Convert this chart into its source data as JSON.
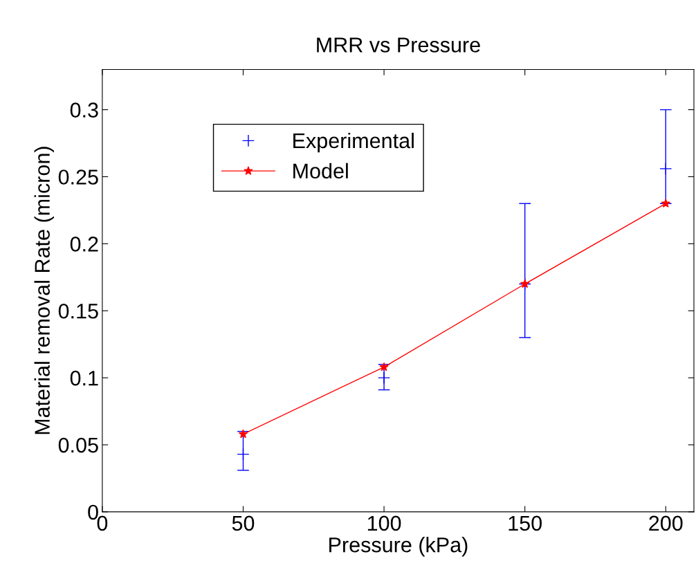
{
  "chart_data": {
    "type": "line",
    "title": "MRR vs Pressure",
    "xlabel": "Pressure (kPa)",
    "ylabel": "Material removal Rate (micron)",
    "x": [
      50,
      100,
      150,
      200
    ],
    "series": [
      {
        "name": "Experimental",
        "type": "scatter",
        "color": "#0000ff",
        "marker": "cross",
        "values": [
          0.043,
          0.1,
          0.17,
          0.256
        ],
        "errors": [
          [
            0.031,
            0.06
          ],
          [
            0.091,
            0.11
          ],
          [
            0.13,
            0.23
          ],
          [
            0.23,
            0.3
          ]
        ]
      },
      {
        "name": "Model",
        "color": "#ff0000",
        "marker": "star",
        "line_style": "solid",
        "values": [
          0.058,
          0.108,
          0.17,
          0.23
        ]
      }
    ],
    "xlim": [
      0,
      210
    ],
    "ylim": [
      0,
      0.33
    ],
    "xticks": [
      0,
      50,
      100,
      150,
      200
    ],
    "yticks": [
      0,
      0.05,
      0.1,
      0.15,
      0.2,
      0.25,
      0.3
    ],
    "grid": false,
    "legend": "top left"
  }
}
